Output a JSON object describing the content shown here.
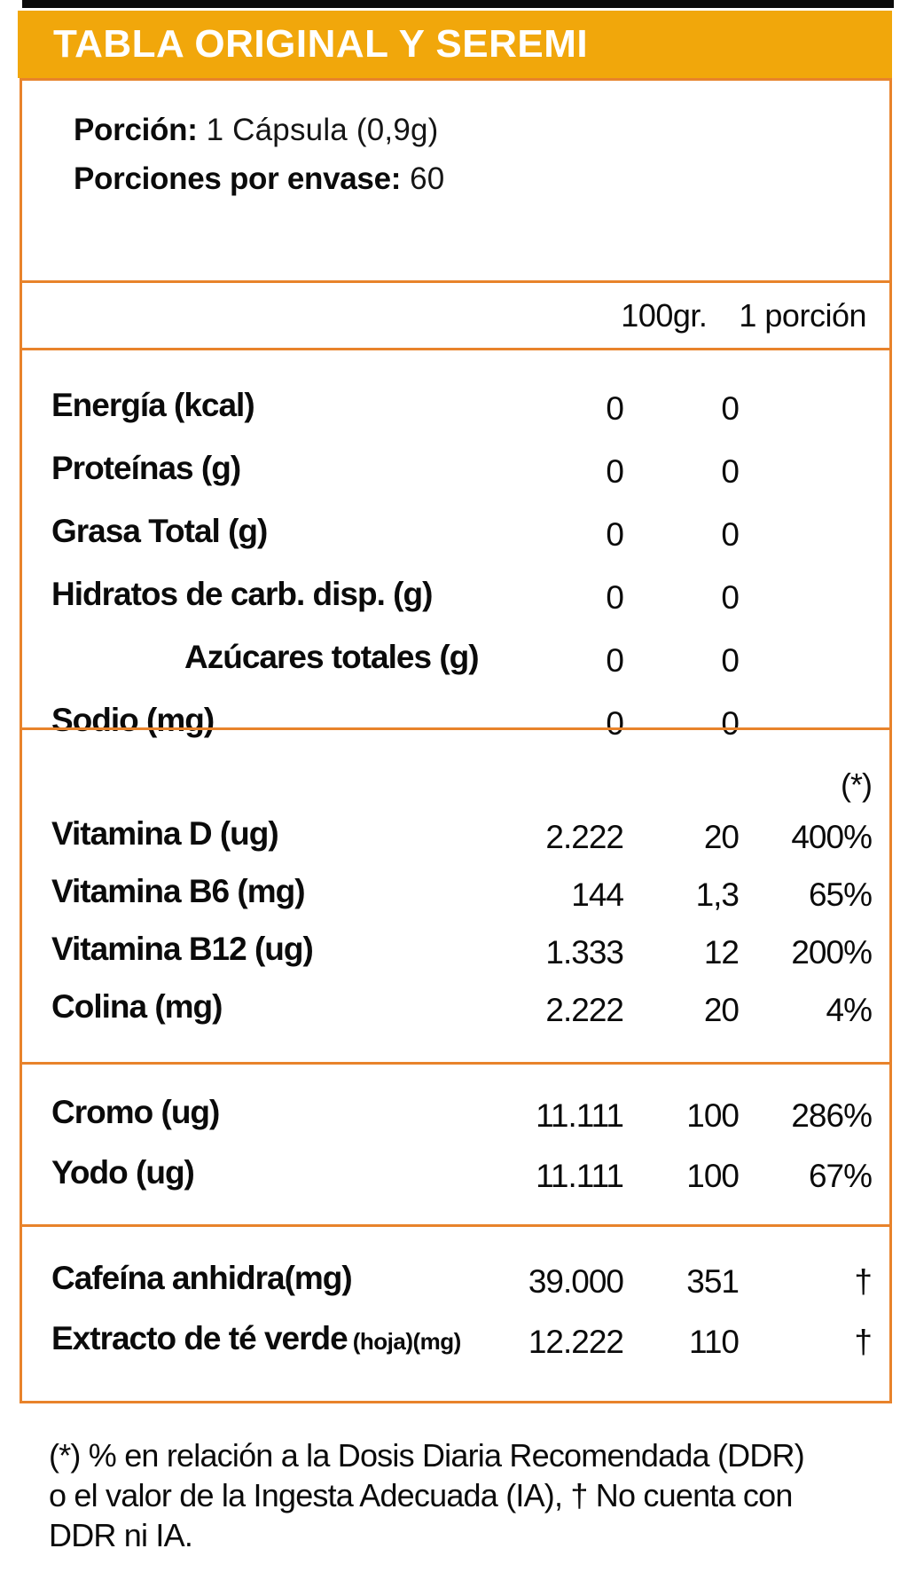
{
  "header": {
    "title": "TABLA ORIGINAL Y SEREMI"
  },
  "serving": {
    "portion_label": "Porción:",
    "portion_value": "1 Cápsula (0,9g)",
    "servings_label": "Porciones por envase:",
    "servings_value": "60"
  },
  "columns": {
    "per100": "100gr.",
    "perPortion": "1 porción",
    "ddr_marker": "(*)"
  },
  "rows": {
    "base": [
      {
        "name": "Energía (kcal)",
        "per100": "0",
        "portion": "0",
        "pct": ""
      },
      {
        "name": "Proteínas (g)",
        "per100": "0",
        "portion": "0",
        "pct": ""
      },
      {
        "name": "Grasa Total (g)",
        "per100": "0",
        "portion": "0",
        "pct": ""
      },
      {
        "name": "Hidratos de carb. disp. (g)",
        "per100": "0",
        "portion": "0",
        "pct": ""
      },
      {
        "name": "Azúcares totales (g)",
        "indent": true,
        "per100": "0",
        "portion": "0",
        "pct": ""
      },
      {
        "name": "Sodio (mg)",
        "per100": "0",
        "portion": "0",
        "pct": ""
      }
    ],
    "vitamins": [
      {
        "name": "Vitamina D (ug)",
        "per100": "2.222",
        "portion": "20",
        "pct": "400%"
      },
      {
        "name": "Vitamina B6 (mg)",
        "per100": "144",
        "portion": "1,3",
        "pct": "65%"
      },
      {
        "name": "Vitamina B12 (ug)",
        "per100": "1.333",
        "portion": "12",
        "pct": "200%"
      },
      {
        "name": "Colina (mg)",
        "per100": "2.222",
        "portion": "20",
        "pct": "4%"
      }
    ],
    "minerals": [
      {
        "name": "Cromo (ug)",
        "per100": "11.111",
        "portion": "100",
        "pct": "286%"
      },
      {
        "name": "Yodo (ug)",
        "per100": "11.111",
        "portion": "100",
        "pct": "67%"
      }
    ],
    "others": [
      {
        "name": "Cafeína anhidra(mg)",
        "per100": "39.000",
        "portion": "351",
        "pct": "†"
      },
      {
        "name": "Extracto de té verde",
        "small": "(hoja)(mg)",
        "per100": "12.222",
        "portion": "110",
        "pct": "†"
      }
    ]
  },
  "footnote": {
    "lines": [
      "(*) % en relación a la Dosis Diaria Recomendada (DDR)",
      "o el valor de la Ingesta Adecuada (IA), † No cuenta con",
      "DDR ni IA."
    ]
  },
  "colors": {
    "header_orange": "#F1A70B",
    "line_orange": "#E8832B",
    "top_strip_black": "#0A0A0A",
    "text_black": "#0B0B0B",
    "title_white": "#FFFFFF"
  }
}
